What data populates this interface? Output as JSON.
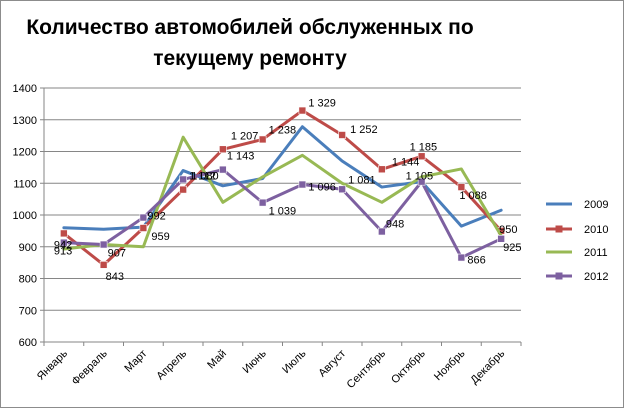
{
  "chart_data": {
    "type": "line",
    "title_lines": [
      "Количество автомобилей обслуженных по",
      "текущему ремонту"
    ],
    "categories": [
      "Январь",
      "Февраль",
      "Март",
      "Апрель",
      "Май",
      "Июнь",
      "Июль",
      "Август",
      "Сентябрь",
      "Октябрь",
      "Ноябрь",
      "Декабрь"
    ],
    "ylim": [
      600,
      1400
    ],
    "yticks": [
      "600",
      "700",
      "800",
      "900",
      "1000",
      "1100",
      "1200",
      "1300",
      "1400"
    ],
    "grid": true,
    "legend_position": "right",
    "series": [
      {
        "name": "2009",
        "color": "#4a7ebb",
        "marker": "none",
        "values": [
          960,
          955,
          962,
          1140,
          1092,
          1115,
          1278,
          1170,
          1088,
          1105,
          965,
          1015
        ],
        "labels": [
          "",
          "",
          "",
          "",
          "",
          "",
          "",
          "",
          "",
          "",
          "",
          ""
        ]
      },
      {
        "name": "2010",
        "color": "#be4b48",
        "marker": "square",
        "values": [
          942,
          843,
          959,
          1080,
          1207,
          1238,
          1329,
          1252,
          1144,
          1185,
          1088,
          950
        ],
        "labels": [
          "942",
          "843",
          "959",
          "1 080",
          "1 207",
          "1 238",
          "1 329",
          "1 252",
          "1 144",
          "1 185",
          "1 088",
          "950"
        ]
      },
      {
        "name": "2011",
        "color": "#98b954",
        "marker": "none",
        "values": [
          893,
          907,
          900,
          1245,
          1040,
          1120,
          1188,
          1100,
          1040,
          1120,
          1145,
          935
        ],
        "labels": [
          "",
          "",
          "",
          "",
          "",
          "",
          "",
          "",
          "",
          "",
          "",
          ""
        ]
      },
      {
        "name": "2012",
        "color": "#7d60a0",
        "marker": "square",
        "values": [
          913,
          907,
          992,
          1112,
          1143,
          1039,
          1096,
          1081,
          948,
          1105,
          866,
          925
        ],
        "labels": [
          "913",
          "907",
          "992",
          "1 112",
          "1 143",
          "1 039",
          "1 096",
          "1 081",
          "948",
          "1 105",
          "866",
          "925"
        ]
      }
    ]
  }
}
